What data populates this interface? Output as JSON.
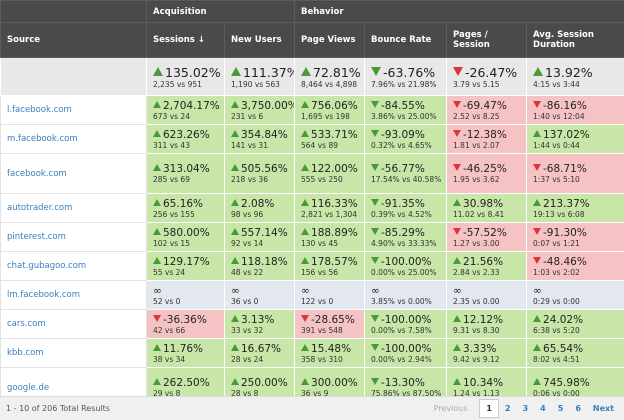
{
  "header": {
    "groups": {
      "acquisition": "Acquisition",
      "behavior": "Behavior"
    },
    "columns": [
      "Source",
      "Sessions ↓",
      "New Users",
      "Page Views",
      "Bounce Rate",
      "Pages / Session",
      "Avg. Session Duration"
    ]
  },
  "totals": [
    {
      "change": "135.02%",
      "detail": "2,235 vs 951",
      "trend": "up",
      "tone": "good"
    },
    {
      "change": "111.37%",
      "detail": "1,190 vs 563",
      "trend": "up",
      "tone": "good"
    },
    {
      "change": "72.81%",
      "detail": "8,464 vs 4,898",
      "trend": "up",
      "tone": "good"
    },
    {
      "change": "-63.76%",
      "detail": "7.96% vs 21.98%",
      "trend": "down",
      "tone": "good"
    },
    {
      "change": "-26.47%",
      "detail": "3.79 vs 5.15",
      "trend": "down",
      "tone": "bad"
    },
    {
      "change": "13.92%",
      "detail": "4:15 vs 3:44",
      "trend": "up",
      "tone": "good"
    }
  ],
  "rows": [
    {
      "source": "l.facebook.com",
      "cells": [
        {
          "change": "2,704.17%",
          "detail": "673 vs 24",
          "trend": "up",
          "tone": "good"
        },
        {
          "change": "3,750.00%",
          "detail": "231 vs 6",
          "trend": "up",
          "tone": "good"
        },
        {
          "change": "756.06%",
          "detail": "1,695 vs 198",
          "trend": "up",
          "tone": "good"
        },
        {
          "change": "-84.55%",
          "detail": "3.86% vs 25.00%",
          "trend": "down",
          "tone": "good"
        },
        {
          "change": "-69.47%",
          "detail": "2.52 vs 8.25",
          "trend": "down",
          "tone": "bad"
        },
        {
          "change": "-86.16%",
          "detail": "1:40 vs 12:04",
          "trend": "down",
          "tone": "bad"
        }
      ]
    },
    {
      "source": "m.facebook.com",
      "cells": [
        {
          "change": "623.26%",
          "detail": "311 vs 43",
          "trend": "up",
          "tone": "good"
        },
        {
          "change": "354.84%",
          "detail": "141 vs 31",
          "trend": "up",
          "tone": "good"
        },
        {
          "change": "533.71%",
          "detail": "564 vs 89",
          "trend": "up",
          "tone": "good"
        },
        {
          "change": "-93.09%",
          "detail": "0.32% vs 4.65%",
          "trend": "down",
          "tone": "good"
        },
        {
          "change": "-12.38%",
          "detail": "1.81 vs 2.07",
          "trend": "down",
          "tone": "bad"
        },
        {
          "change": "137.02%",
          "detail": "1:44 vs 0:44",
          "trend": "up",
          "tone": "good"
        }
      ]
    },
    {
      "source": "facebook.com",
      "cells": [
        {
          "change": "313.04%",
          "detail": "285 vs 69",
          "trend": "up",
          "tone": "good"
        },
        {
          "change": "505.56%",
          "detail": "218 vs 36",
          "trend": "up",
          "tone": "good"
        },
        {
          "change": "122.00%",
          "detail": "555 vs 250",
          "trend": "up",
          "tone": "good"
        },
        {
          "change": "-56.77%",
          "detail": "17.54% vs 40.58%",
          "trend": "down",
          "tone": "good"
        },
        {
          "change": "-46.25%",
          "detail": "1.95 vs 3.62",
          "trend": "down",
          "tone": "bad"
        },
        {
          "change": "-68.71%",
          "detail": "1:37 vs 5:10",
          "trend": "down",
          "tone": "bad"
        }
      ]
    },
    {
      "source": "autotrader.com",
      "cells": [
        {
          "change": "65.16%",
          "detail": "256 vs 155",
          "trend": "up",
          "tone": "good"
        },
        {
          "change": "2.08%",
          "detail": "98 vs 96",
          "trend": "up",
          "tone": "good"
        },
        {
          "change": "116.33%",
          "detail": "2,821 vs 1,304",
          "trend": "up",
          "tone": "good"
        },
        {
          "change": "-91.35%",
          "detail": "0.39% vs 4.52%",
          "trend": "down",
          "tone": "good"
        },
        {
          "change": "30.98%",
          "detail": "11.02 vs 8.41",
          "trend": "up",
          "tone": "good"
        },
        {
          "change": "213.37%",
          "detail": "19:13 vs 6:08",
          "trend": "up",
          "tone": "good"
        }
      ]
    },
    {
      "source": "pinterest.com",
      "cells": [
        {
          "change": "580.00%",
          "detail": "102 vs 15",
          "trend": "up",
          "tone": "good"
        },
        {
          "change": "557.14%",
          "detail": "92 vs 14",
          "trend": "up",
          "tone": "good"
        },
        {
          "change": "188.89%",
          "detail": "130 vs 45",
          "trend": "up",
          "tone": "good"
        },
        {
          "change": "-85.29%",
          "detail": "4.90% vs 33.33%",
          "trend": "down",
          "tone": "good"
        },
        {
          "change": "-57.52%",
          "detail": "1.27 vs 3.00",
          "trend": "down",
          "tone": "bad"
        },
        {
          "change": "-91.30%",
          "detail": "0:07 vs 1:21",
          "trend": "down",
          "tone": "bad"
        }
      ]
    },
    {
      "source": "chat.gubagoo.com",
      "cells": [
        {
          "change": "129.17%",
          "detail": "55 vs 24",
          "trend": "up",
          "tone": "good"
        },
        {
          "change": "118.18%",
          "detail": "48 vs 22",
          "trend": "up",
          "tone": "good"
        },
        {
          "change": "178.57%",
          "detail": "156 vs 56",
          "trend": "up",
          "tone": "good"
        },
        {
          "change": "-100.00%",
          "detail": "0.00% vs 25.00%",
          "trend": "down",
          "tone": "good"
        },
        {
          "change": "21.56%",
          "detail": "2.84 vs 2.33",
          "trend": "up",
          "tone": "good"
        },
        {
          "change": "-48.46%",
          "detail": "1:03 vs 2:02",
          "trend": "down",
          "tone": "bad"
        }
      ]
    },
    {
      "source": "lm.facebook.com",
      "cells": [
        {
          "change": "∞",
          "detail": "52 vs 0",
          "trend": null,
          "tone": "neutral"
        },
        {
          "change": "∞",
          "detail": "36 vs 0",
          "trend": null,
          "tone": "neutral"
        },
        {
          "change": "∞",
          "detail": "122 vs 0",
          "trend": null,
          "tone": "neutral"
        },
        {
          "change": "∞",
          "detail": "3.85% vs 0.00%",
          "trend": null,
          "tone": "neutral"
        },
        {
          "change": "∞",
          "detail": "2.35 vs 0.00",
          "trend": null,
          "tone": "neutral"
        },
        {
          "change": "∞",
          "detail": "0:29 vs 0:00",
          "trend": null,
          "tone": "neutral"
        }
      ]
    },
    {
      "source": "cars.com",
      "cells": [
        {
          "change": "-36.36%",
          "detail": "42 vs 66",
          "trend": "down",
          "tone": "bad"
        },
        {
          "change": "3.13%",
          "detail": "33 vs 32",
          "trend": "up",
          "tone": "good"
        },
        {
          "change": "-28.65%",
          "detail": "391 vs 548",
          "trend": "down",
          "tone": "bad"
        },
        {
          "change": "-100.00%",
          "detail": "0.00% vs 7.58%",
          "trend": "down",
          "tone": "good"
        },
        {
          "change": "12.12%",
          "detail": "9.31 vs 8.30",
          "trend": "up",
          "tone": "good"
        },
        {
          "change": "24.02%",
          "detail": "6:38 vs 5:20",
          "trend": "up",
          "tone": "good"
        }
      ]
    },
    {
      "source": "kbb.com",
      "cells": [
        {
          "change": "11.76%",
          "detail": "38 vs 34",
          "trend": "up",
          "tone": "good"
        },
        {
          "change": "16.67%",
          "detail": "28 vs 24",
          "trend": "up",
          "tone": "good"
        },
        {
          "change": "15.48%",
          "detail": "358 vs 310",
          "trend": "up",
          "tone": "good"
        },
        {
          "change": "-100.00%",
          "detail": "0.00% vs 2.94%",
          "trend": "down",
          "tone": "good"
        },
        {
          "change": "3.33%",
          "detail": "9.42 vs 9.12",
          "trend": "up",
          "tone": "good"
        },
        {
          "change": "65.54%",
          "detail": "8:02 vs 4:51",
          "trend": "up",
          "tone": "good"
        }
      ]
    },
    {
      "source": "google.de",
      "cells": [
        {
          "change": "262.50%",
          "detail": "29 vs 8",
          "trend": "up",
          "tone": "good"
        },
        {
          "change": "250.00%",
          "detail": "28 vs 8",
          "trend": "up",
          "tone": "good"
        },
        {
          "change": "300.00%",
          "detail": "36 vs 9",
          "trend": "up",
          "tone": "good"
        },
        {
          "change": "-13.30%",
          "detail": "75.86% vs 87.50%",
          "trend": "down",
          "tone": "good"
        },
        {
          "change": "10.34%",
          "detail": "1.24 vs 1.13",
          "trend": "up",
          "tone": "good"
        },
        {
          "change": "745.98%",
          "detail": "0:06 vs 0:00",
          "trend": "up",
          "tone": "good"
        }
      ]
    }
  ],
  "footer": {
    "summary": "1 - 10 of 206 Total Results",
    "pagination": {
      "previous": "Previous",
      "pages": [
        "1",
        "2",
        "3",
        "4",
        "5",
        "6"
      ],
      "next": "Next",
      "current": 0
    }
  }
}
